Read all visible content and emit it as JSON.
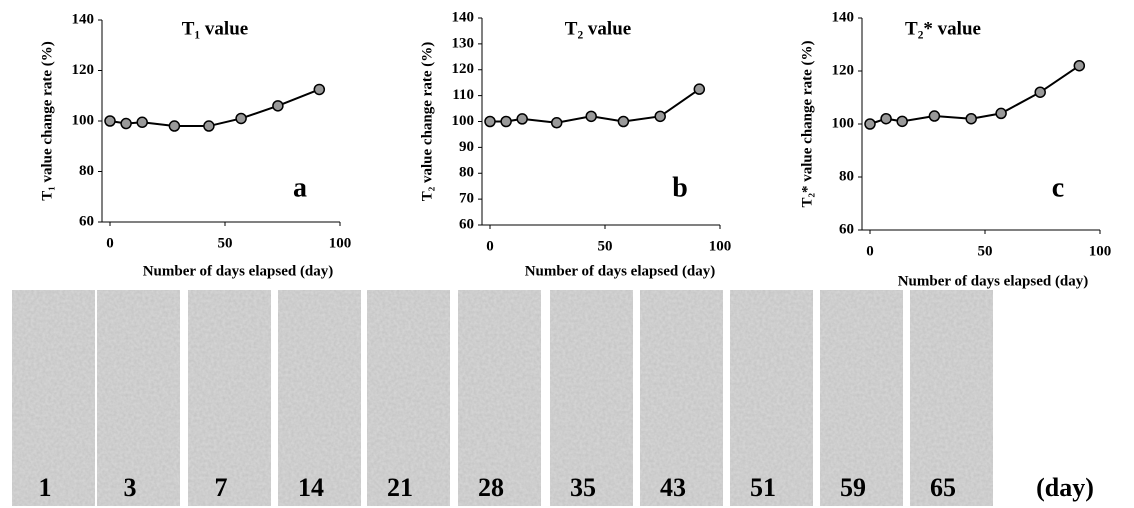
{
  "chart_data": [
    {
      "type": "line",
      "title": "T₁ value",
      "ylabel": "T₁ value change rate (%)",
      "xlabel": "Number of days elapsed (day)",
      "panel": "a",
      "x": [
        0,
        7,
        14,
        28,
        43,
        57,
        73,
        91
      ],
      "series": [
        {
          "color": "#000000",
          "values": [
            100,
            99,
            99.5,
            98,
            98,
            101,
            106,
            112.5
          ]
        }
      ],
      "xlim": [
        0,
        100
      ],
      "xticks": [
        0,
        50,
        100
      ],
      "ylim": [
        60,
        140
      ],
      "yticks": [
        60,
        80,
        100,
        120,
        140
      ]
    },
    {
      "type": "line",
      "title": "T₂ value",
      "ylabel": "T₂ value change rate (%)",
      "xlabel": "Number of days elapsed (day)",
      "panel": "b",
      "x": [
        0,
        7,
        14,
        29,
        44,
        58,
        74,
        91
      ],
      "series": [
        {
          "color": "#000000",
          "values": [
            100,
            100,
            101,
            99.5,
            102,
            100,
            102,
            112.5
          ]
        }
      ],
      "xlim": [
        0,
        100
      ],
      "xticks": [
        0,
        50,
        100
      ],
      "ylim": [
        60,
        140
      ],
      "yticks": [
        60,
        70,
        80,
        90,
        100,
        110,
        120,
        130,
        140
      ]
    },
    {
      "type": "line",
      "title": "T₂* value",
      "ylabel": "T₂* value change rate (%)",
      "xlabel": "Number of days elapsed (day)",
      "panel": "c",
      "x": [
        0,
        7,
        14,
        28,
        44,
        57,
        74,
        91
      ],
      "series": [
        {
          "color": "#000000",
          "values": [
            100,
            102,
            101,
            103,
            102,
            104,
            112,
            122
          ]
        }
      ],
      "xlim": [
        0,
        100
      ],
      "xticks": [
        0,
        50,
        100
      ],
      "ylim": [
        60,
        140
      ],
      "yticks": [
        60,
        80,
        100,
        120,
        140
      ]
    }
  ],
  "image_strip": {
    "labels": [
      "1",
      "3",
      "7",
      "14",
      "21",
      "28",
      "35",
      "43",
      "51",
      "59",
      "65"
    ],
    "unit": "(day)"
  }
}
